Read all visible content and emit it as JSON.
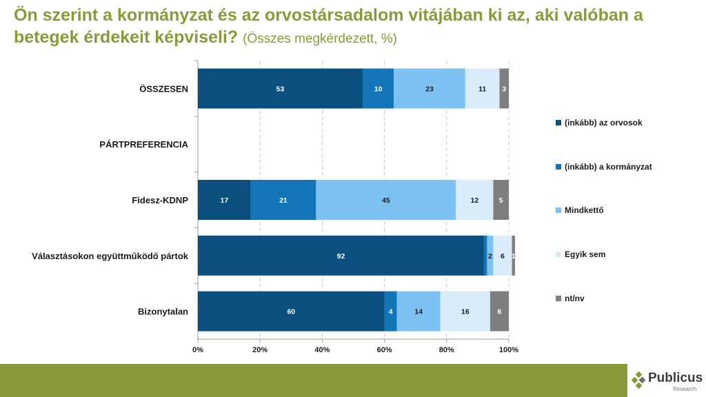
{
  "header": {
    "title": "Ön szerint a kormányzat és az orvostársadalom vitájában ki az, aki valóban a betegek érdekeit képviseli?",
    "subtitle": "(Összes megkérdezett, %)"
  },
  "brand": {
    "name": "Publicus",
    "sub": "Research",
    "color": "#8a9a3b"
  },
  "chart_data": {
    "type": "bar",
    "orientation": "horizontal",
    "stacked": true,
    "categories": [
      "ÖSSZESEN",
      "PÁRTPREFERENCIA",
      "Fidesz-KDNP",
      "Választásokon együttműködő pártok",
      "Bizonytalan"
    ],
    "series": [
      {
        "name": "(inkább) az orvosok",
        "color": "#0b4f7e",
        "text_color": "#ffffff",
        "values": [
          53,
          null,
          17,
          92,
          60
        ]
      },
      {
        "name": "(inkább) a kormányzat",
        "color": "#1374b8",
        "text_color": "#ffffff",
        "values": [
          10,
          null,
          21,
          1,
          4
        ]
      },
      {
        "name": "Mindkettő",
        "color": "#7dc2f2",
        "text_color": "#1a1a1a",
        "values": [
          23,
          null,
          45,
          2,
          14
        ]
      },
      {
        "name": "Egyik sem",
        "color": "#d9ecfa",
        "text_color": "#1a1a1a",
        "values": [
          11,
          null,
          12,
          6,
          16
        ]
      },
      {
        "name": "nt/nv",
        "color": "#7f7f7f",
        "text_color": "#ffffff",
        "values": [
          3,
          null,
          5,
          1,
          6
        ]
      }
    ],
    "labels": [
      [
        "53",
        "10",
        "23",
        "11",
        "3"
      ],
      [
        null,
        null,
        null,
        null,
        null
      ],
      [
        "17",
        "21",
        "45",
        "12",
        "5"
      ],
      [
        "92",
        "",
        "2",
        "6",
        "1"
      ],
      [
        "60",
        "4",
        "14",
        "16",
        "6"
      ]
    ],
    "x_ticks": [
      "0%",
      "20%",
      "40%",
      "60%",
      "80%",
      "100%"
    ],
    "xlim": [
      0,
      100
    ],
    "grid": true,
    "legend": "right",
    "title": "Ön szerint a kormányzat és az orvostársadalom vitájában ki az, aki valóban a betegek érdekeit képviseli?",
    "xlabel": "",
    "ylabel": ""
  }
}
